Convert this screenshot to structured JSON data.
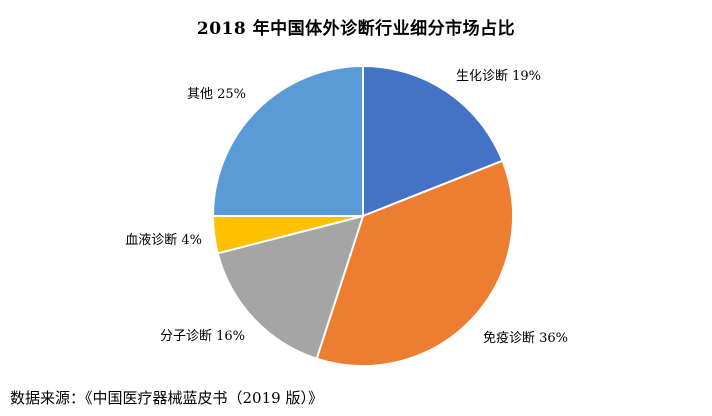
{
  "chart_data": {
    "type": "pie",
    "title": "2018 年中国体外诊断行业细分市场占比",
    "slices": [
      {
        "label": "生化诊断 19%",
        "name": "生化诊断",
        "value": 19,
        "color": "#4472C4"
      },
      {
        "label": "免疫诊断 36%",
        "name": "免疫诊断",
        "value": 36,
        "color": "#ED7D31"
      },
      {
        "label": "分子诊断 16%",
        "name": "分子诊断",
        "value": 16,
        "color": "#A5A5A5"
      },
      {
        "label": "血液诊断 4%",
        "name": "血液诊断",
        "value": 4,
        "color": "#FFC000"
      },
      {
        "label": "其他 25%",
        "name": "其他",
        "value": 25,
        "color": "#5B9BD5"
      }
    ]
  },
  "source": "数据来源：《中国医疗器械蓝皮书（2019 版）》"
}
